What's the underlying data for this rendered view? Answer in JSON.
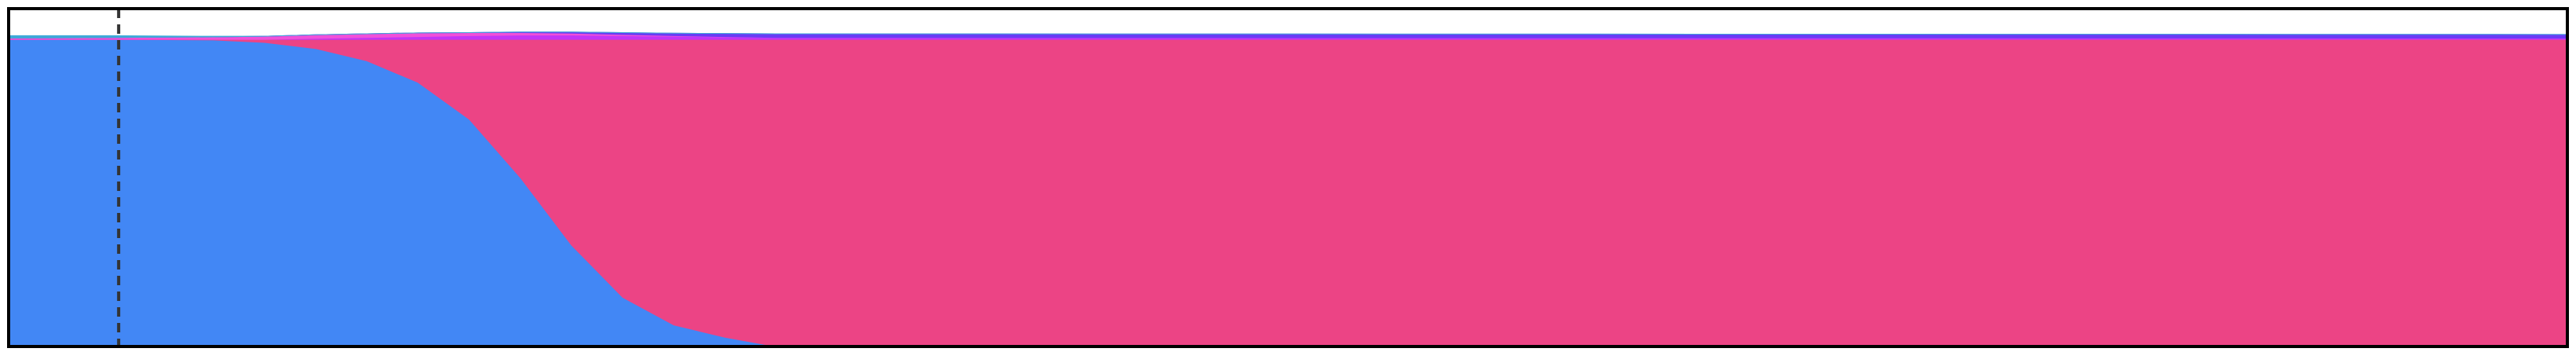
{
  "chart_data": {
    "type": "area",
    "stacked": true,
    "normalized": true,
    "title": "",
    "xlabel": "",
    "ylabel": "",
    "grid": false,
    "legend": "none",
    "xlim": [
      0,
      1000
    ],
    "ylim": [
      0,
      1.1
    ],
    "marker_line": {
      "x": 43,
      "style": "dashed",
      "color": "#333333"
    },
    "x": [
      0,
      40,
      80,
      100,
      120,
      140,
      160,
      180,
      200,
      220,
      240,
      260,
      280,
      300,
      1000
    ],
    "series": [
      {
        "color": "#4287f5",
        "values": [
          1.0,
          1.0,
          0.998,
          0.99,
          0.97,
          0.93,
          0.86,
          0.74,
          0.55,
          0.33,
          0.16,
          0.07,
          0.03,
          0.0,
          0.0
        ]
      },
      {
        "color": "#ec4485",
        "values": [
          0.0,
          0.0,
          0.002,
          0.01,
          0.03,
          0.07,
          0.14,
          0.26,
          0.45,
          0.67,
          0.84,
          0.93,
          0.97,
          1.0,
          1.0
        ]
      },
      {
        "color": "#c235f5",
        "values": [
          0.0,
          0.0,
          0.0,
          0.0,
          0.003,
          0.006,
          0.009,
          0.012,
          0.014,
          0.014,
          0.012,
          0.01,
          0.008,
          0.006,
          0.004
        ]
      },
      {
        "color": "#f050d8",
        "values": [
          0.004,
          0.006,
          0.008,
          0.01,
          0.012,
          0.012,
          0.012,
          0.01,
          0.008,
          0.006,
          0.004,
          0.002,
          0.001,
          0.0,
          0.0
        ]
      },
      {
        "color": "#6a3cf5",
        "values": [
          0.0,
          0.0,
          0.0,
          0.0,
          0.0,
          0.0,
          0.0,
          0.0,
          0.002,
          0.004,
          0.006,
          0.008,
          0.01,
          0.012,
          0.012
        ]
      },
      {
        "color": "#3fa9d8",
        "values": [
          0.008,
          0.006,
          0.002,
          0.0,
          0.0,
          0.0,
          0.0,
          0.0,
          0.0,
          0.0,
          0.0,
          0.0,
          0.0,
          0.0,
          0.0
        ]
      }
    ]
  }
}
